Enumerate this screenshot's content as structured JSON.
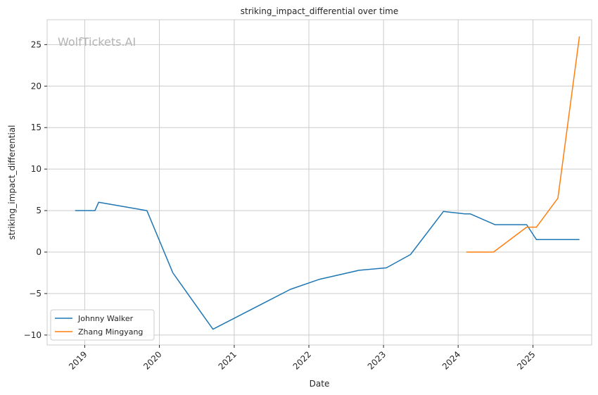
{
  "chart_data": {
    "type": "line",
    "title": "striking_impact_differential over time",
    "xlabel": "Date",
    "ylabel": "striking_impact_differential",
    "watermark": "WolfTickets.AI",
    "x_ticks": [
      "2019",
      "2020",
      "2021",
      "2022",
      "2023",
      "2024",
      "2025"
    ],
    "y_ticks": [
      -10,
      -5,
      0,
      5,
      10,
      15,
      20,
      25
    ],
    "xlim": [
      "2018-07-01",
      "2025-10-15"
    ],
    "ylim": [
      -11.2,
      28
    ],
    "grid": true,
    "legend_position": "lower-left",
    "series": [
      {
        "name": "Johnny Walker",
        "color": "#1f77b4",
        "points": [
          {
            "x": "2018-11-15",
            "y": 5.0
          },
          {
            "x": "2019-02-20",
            "y": 5.0
          },
          {
            "x": "2019-03-10",
            "y": 6.0
          },
          {
            "x": "2019-11-01",
            "y": 5.0
          },
          {
            "x": "2020-03-07",
            "y": -2.5
          },
          {
            "x": "2020-09-19",
            "y": -9.3
          },
          {
            "x": "2021-10-02",
            "y": -4.5
          },
          {
            "x": "2022-02-19",
            "y": -3.3
          },
          {
            "x": "2022-09-03",
            "y": -2.2
          },
          {
            "x": "2023-01-15",
            "y": -1.9
          },
          {
            "x": "2023-05-13",
            "y": -0.3
          },
          {
            "x": "2023-10-21",
            "y": 4.9
          },
          {
            "x": "2024-02-03",
            "y": 4.6
          },
          {
            "x": "2024-03-01",
            "y": 4.6
          },
          {
            "x": "2024-06-29",
            "y": 3.3
          },
          {
            "x": "2024-12-01",
            "y": 3.3
          },
          {
            "x": "2025-01-18",
            "y": 1.5
          },
          {
            "x": "2025-08-16",
            "y": 1.5
          }
        ]
      },
      {
        "name": "Zhang Mingyang",
        "color": "#ff7f0e",
        "points": [
          {
            "x": "2024-02-10",
            "y": 0.0
          },
          {
            "x": "2024-06-22",
            "y": 0.0
          },
          {
            "x": "2024-12-01",
            "y": 3.0
          },
          {
            "x": "2025-01-18",
            "y": 3.0
          },
          {
            "x": "2025-05-03",
            "y": 6.5
          },
          {
            "x": "2025-08-16",
            "y": 26.0
          }
        ]
      }
    ]
  }
}
